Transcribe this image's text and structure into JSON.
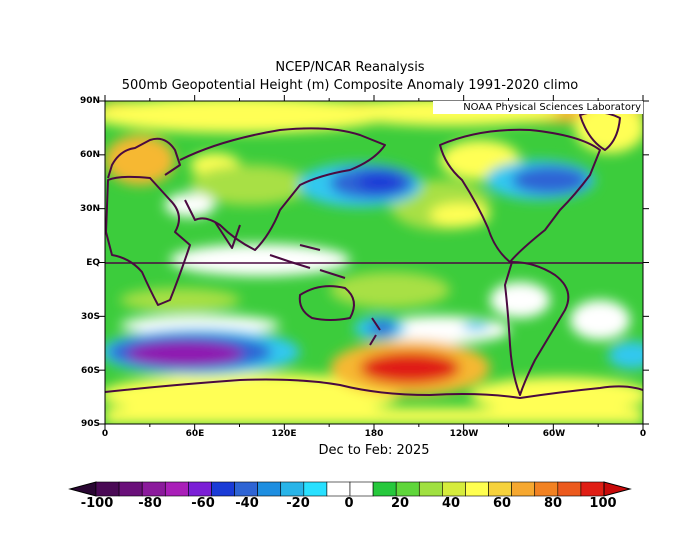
{
  "header": {
    "title": "NCEP/NCAR Reanalysis",
    "subtitle": "500mb Geopotential Height (m) Composite Anomaly 1991-2020 climo",
    "credit": "NOAA Physical Sciences Laboratory",
    "period": "Dec to Feb: 2025"
  },
  "axes": {
    "lat_labels": [
      "90N",
      "60N",
      "30N",
      "EQ",
      "30S",
      "60S",
      "90S"
    ],
    "lon_labels": [
      "0",
      "60E",
      "120E",
      "180",
      "120W",
      "60W",
      "0"
    ]
  },
  "colorbar": {
    "labels": [
      "-100",
      "-80",
      "-60",
      "-40",
      "-20",
      "0",
      "20",
      "40",
      "60",
      "80",
      "100"
    ],
    "colors": [
      "#4a0a55",
      "#6a107a",
      "#8b1a9c",
      "#a91fb8",
      "#7b1fd6",
      "#1a3bd6",
      "#2e64d4",
      "#1e8ee0",
      "#28b4e8",
      "#28e0ff",
      "#ffffff",
      "#ffffff",
      "#26c83c",
      "#5fd63a",
      "#a0e040",
      "#d6ec3c",
      "#ffff50",
      "#f6d23c",
      "#f6a830",
      "#f28222",
      "#ec5a1e",
      "#e01e14"
    ],
    "left_arrow_color": "#2a0733",
    "right_arrow_color": "#c80a0a"
  },
  "map_colors": {
    "background": "#3ccc3c",
    "neutral": "#ffffff",
    "weak_positive": "#a8e044",
    "positive": "#ffff55",
    "strong_positive": "#f6b830",
    "very_strong_positive": "#e01e14",
    "weak_negative": "#30c8f0",
    "negative": "#2e64d4",
    "strong_negative": "#1a3bd6",
    "very_strong_negative": "#9018b0",
    "coast": "#4a0a40",
    "equator": "#4a0a40"
  }
}
